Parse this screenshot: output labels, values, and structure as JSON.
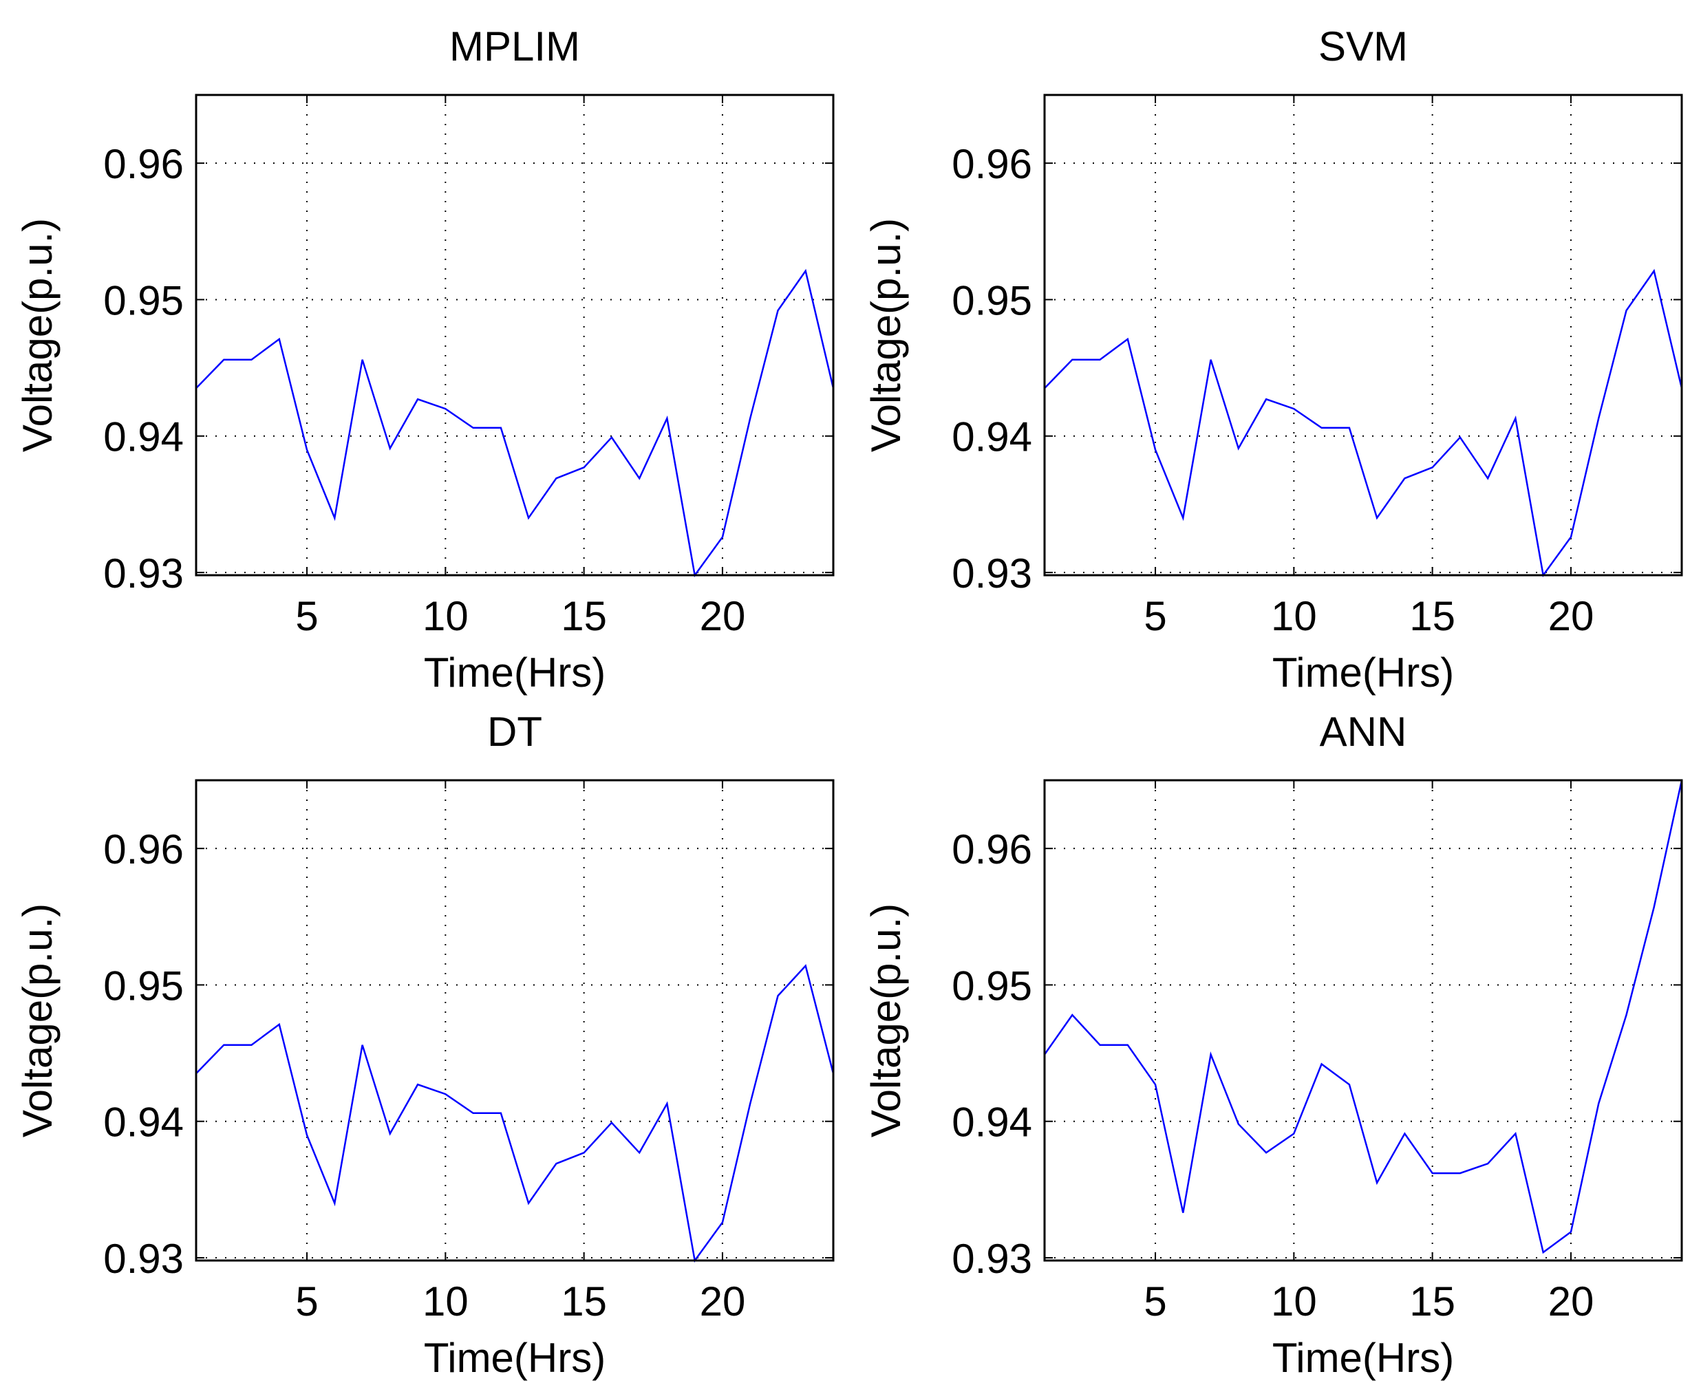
{
  "chart_data": [
    {
      "type": "line",
      "title": "MPLIM",
      "xlabel": "Time(Hrs)",
      "ylabel": "Voltage(p.u.)",
      "xlim": [
        1,
        24
      ],
      "ylim": [
        0.9298,
        0.965
      ],
      "xticks": [
        5,
        10,
        15,
        20
      ],
      "yticks": [
        0.93,
        0.94,
        0.95,
        0.96
      ],
      "xtick_labels": [
        "5",
        "10",
        "15",
        "20"
      ],
      "ytick_labels": [
        "0.93",
        "0.94",
        "0.95",
        "0.96"
      ],
      "grid": true,
      "series": [
        {
          "name": "MPLIM",
          "color": "#0000ff",
          "x": [
            1,
            2,
            3,
            4,
            5,
            6,
            7,
            8,
            9,
            10,
            11,
            12,
            13,
            14,
            15,
            16,
            17,
            18,
            19,
            20,
            21,
            22,
            23,
            24
          ],
          "values": [
            0.9435,
            0.9456,
            0.9456,
            0.9471,
            0.939,
            0.934,
            0.9456,
            0.9391,
            0.9427,
            0.942,
            0.9406,
            0.9406,
            0.934,
            0.9369,
            0.9377,
            0.9399,
            0.9369,
            0.9413,
            0.9298,
            0.9326,
            0.9413,
            0.9492,
            0.9521,
            0.9435
          ]
        }
      ]
    },
    {
      "type": "line",
      "title": "SVM",
      "xlabel": "Time(Hrs)",
      "ylabel": "Voltage(p.u.)",
      "xlim": [
        1,
        24
      ],
      "ylim": [
        0.9298,
        0.965
      ],
      "xticks": [
        5,
        10,
        15,
        20
      ],
      "yticks": [
        0.93,
        0.94,
        0.95,
        0.96
      ],
      "xtick_labels": [
        "5",
        "10",
        "15",
        "20"
      ],
      "ytick_labels": [
        "0.93",
        "0.94",
        "0.95",
        "0.96"
      ],
      "grid": true,
      "series": [
        {
          "name": "SVM",
          "color": "#0000ff",
          "x": [
            1,
            2,
            3,
            4,
            5,
            6,
            7,
            8,
            9,
            10,
            11,
            12,
            13,
            14,
            15,
            16,
            17,
            18,
            19,
            20,
            21,
            22,
            23,
            24
          ],
          "values": [
            0.9435,
            0.9456,
            0.9456,
            0.9471,
            0.939,
            0.934,
            0.9456,
            0.9391,
            0.9427,
            0.942,
            0.9406,
            0.9406,
            0.934,
            0.9369,
            0.9377,
            0.9399,
            0.9369,
            0.9413,
            0.9298,
            0.9326,
            0.9413,
            0.9492,
            0.9521,
            0.9435
          ]
        }
      ]
    },
    {
      "type": "line",
      "title": "DT",
      "xlabel": "Time(Hrs)",
      "ylabel": "Voltage(p.u.)",
      "xlim": [
        1,
        24
      ],
      "ylim": [
        0.9298,
        0.965
      ],
      "xticks": [
        5,
        10,
        15,
        20
      ],
      "yticks": [
        0.93,
        0.94,
        0.95,
        0.96
      ],
      "xtick_labels": [
        "5",
        "10",
        "15",
        "20"
      ],
      "ytick_labels": [
        "0.93",
        "0.94",
        "0.95",
        "0.96"
      ],
      "grid": true,
      "series": [
        {
          "name": "DT",
          "color": "#0000ff",
          "x": [
            1,
            2,
            3,
            4,
            5,
            6,
            7,
            8,
            9,
            10,
            11,
            12,
            13,
            14,
            15,
            16,
            17,
            18,
            19,
            20,
            21,
            22,
            23,
            24
          ],
          "values": [
            0.9435,
            0.9456,
            0.9456,
            0.9471,
            0.939,
            0.934,
            0.9456,
            0.9391,
            0.9427,
            0.942,
            0.9406,
            0.9406,
            0.934,
            0.9369,
            0.9377,
            0.9399,
            0.9377,
            0.9413,
            0.9298,
            0.9326,
            0.9413,
            0.9492,
            0.9514,
            0.9435
          ]
        }
      ]
    },
    {
      "type": "line",
      "title": "ANN",
      "xlabel": "Time(Hrs)",
      "ylabel": "Voltage(p.u.)",
      "xlim": [
        1,
        24
      ],
      "ylim": [
        0.9298,
        0.965
      ],
      "xticks": [
        5,
        10,
        15,
        20
      ],
      "yticks": [
        0.93,
        0.94,
        0.95,
        0.96
      ],
      "xtick_labels": [
        "5",
        "10",
        "15",
        "20"
      ],
      "ytick_labels": [
        "0.93",
        "0.94",
        "0.95",
        "0.96"
      ],
      "grid": true,
      "series": [
        {
          "name": "ANN",
          "color": "#0000ff",
          "x": [
            1,
            2,
            3,
            4,
            5,
            6,
            7,
            8,
            9,
            10,
            11,
            12,
            13,
            14,
            15,
            16,
            17,
            18,
            19,
            20,
            21,
            22,
            23,
            24
          ],
          "values": [
            0.9449,
            0.9478,
            0.9456,
            0.9456,
            0.9427,
            0.9333,
            0.9449,
            0.9398,
            0.9377,
            0.9391,
            0.9442,
            0.9427,
            0.9355,
            0.9391,
            0.9362,
            0.9362,
            0.9369,
            0.9391,
            0.9304,
            0.9319,
            0.9413,
            0.9478,
            0.9557,
            0.965
          ]
        }
      ]
    }
  ]
}
